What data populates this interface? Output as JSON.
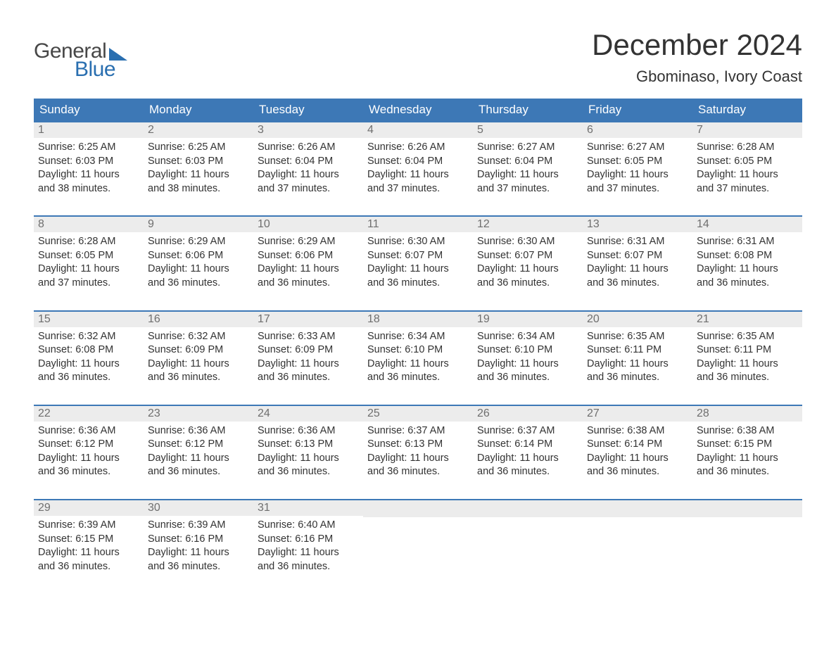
{
  "brand": {
    "word1": "General",
    "word2": "Blue"
  },
  "title": "December 2024",
  "location": "Gbominaso, Ivory Coast",
  "colors": {
    "header_bg": "#3d78b6",
    "header_text": "#ffffff",
    "daynum_bg": "#ececec",
    "daynum_text": "#6f6f6f",
    "body_text": "#333333",
    "brand_gray": "#474747",
    "brand_blue": "#2a6fb0",
    "row_border": "#3d78b6",
    "page_bg": "#ffffff"
  },
  "typography": {
    "title_fontsize": 42,
    "location_fontsize": 22,
    "weekday_fontsize": 17,
    "daynum_fontsize": 16,
    "body_fontsize": 14.5,
    "logo_fontsize": 30
  },
  "weekdays": [
    "Sunday",
    "Monday",
    "Tuesday",
    "Wednesday",
    "Thursday",
    "Friday",
    "Saturday"
  ],
  "weeks": [
    [
      {
        "n": "1",
        "sr": "6:25 AM",
        "ss": "6:03 PM",
        "dh": "11",
        "dm": "38"
      },
      {
        "n": "2",
        "sr": "6:25 AM",
        "ss": "6:03 PM",
        "dh": "11",
        "dm": "38"
      },
      {
        "n": "3",
        "sr": "6:26 AM",
        "ss": "6:04 PM",
        "dh": "11",
        "dm": "37"
      },
      {
        "n": "4",
        "sr": "6:26 AM",
        "ss": "6:04 PM",
        "dh": "11",
        "dm": "37"
      },
      {
        "n": "5",
        "sr": "6:27 AM",
        "ss": "6:04 PM",
        "dh": "11",
        "dm": "37"
      },
      {
        "n": "6",
        "sr": "6:27 AM",
        "ss": "6:05 PM",
        "dh": "11",
        "dm": "37"
      },
      {
        "n": "7",
        "sr": "6:28 AM",
        "ss": "6:05 PM",
        "dh": "11",
        "dm": "37"
      }
    ],
    [
      {
        "n": "8",
        "sr": "6:28 AM",
        "ss": "6:05 PM",
        "dh": "11",
        "dm": "37"
      },
      {
        "n": "9",
        "sr": "6:29 AM",
        "ss": "6:06 PM",
        "dh": "11",
        "dm": "36"
      },
      {
        "n": "10",
        "sr": "6:29 AM",
        "ss": "6:06 PM",
        "dh": "11",
        "dm": "36"
      },
      {
        "n": "11",
        "sr": "6:30 AM",
        "ss": "6:07 PM",
        "dh": "11",
        "dm": "36"
      },
      {
        "n": "12",
        "sr": "6:30 AM",
        "ss": "6:07 PM",
        "dh": "11",
        "dm": "36"
      },
      {
        "n": "13",
        "sr": "6:31 AM",
        "ss": "6:07 PM",
        "dh": "11",
        "dm": "36"
      },
      {
        "n": "14",
        "sr": "6:31 AM",
        "ss": "6:08 PM",
        "dh": "11",
        "dm": "36"
      }
    ],
    [
      {
        "n": "15",
        "sr": "6:32 AM",
        "ss": "6:08 PM",
        "dh": "11",
        "dm": "36"
      },
      {
        "n": "16",
        "sr": "6:32 AM",
        "ss": "6:09 PM",
        "dh": "11",
        "dm": "36"
      },
      {
        "n": "17",
        "sr": "6:33 AM",
        "ss": "6:09 PM",
        "dh": "11",
        "dm": "36"
      },
      {
        "n": "18",
        "sr": "6:34 AM",
        "ss": "6:10 PM",
        "dh": "11",
        "dm": "36"
      },
      {
        "n": "19",
        "sr": "6:34 AM",
        "ss": "6:10 PM",
        "dh": "11",
        "dm": "36"
      },
      {
        "n": "20",
        "sr": "6:35 AM",
        "ss": "6:11 PM",
        "dh": "11",
        "dm": "36"
      },
      {
        "n": "21",
        "sr": "6:35 AM",
        "ss": "6:11 PM",
        "dh": "11",
        "dm": "36"
      }
    ],
    [
      {
        "n": "22",
        "sr": "6:36 AM",
        "ss": "6:12 PM",
        "dh": "11",
        "dm": "36"
      },
      {
        "n": "23",
        "sr": "6:36 AM",
        "ss": "6:12 PM",
        "dh": "11",
        "dm": "36"
      },
      {
        "n": "24",
        "sr": "6:36 AM",
        "ss": "6:13 PM",
        "dh": "11",
        "dm": "36"
      },
      {
        "n": "25",
        "sr": "6:37 AM",
        "ss": "6:13 PM",
        "dh": "11",
        "dm": "36"
      },
      {
        "n": "26",
        "sr": "6:37 AM",
        "ss": "6:14 PM",
        "dh": "11",
        "dm": "36"
      },
      {
        "n": "27",
        "sr": "6:38 AM",
        "ss": "6:14 PM",
        "dh": "11",
        "dm": "36"
      },
      {
        "n": "28",
        "sr": "6:38 AM",
        "ss": "6:15 PM",
        "dh": "11",
        "dm": "36"
      }
    ],
    [
      {
        "n": "29",
        "sr": "6:39 AM",
        "ss": "6:15 PM",
        "dh": "11",
        "dm": "36"
      },
      {
        "n": "30",
        "sr": "6:39 AM",
        "ss": "6:16 PM",
        "dh": "11",
        "dm": "36"
      },
      {
        "n": "31",
        "sr": "6:40 AM",
        "ss": "6:16 PM",
        "dh": "11",
        "dm": "36"
      },
      null,
      null,
      null,
      null
    ]
  ],
  "labels": {
    "sunrise": "Sunrise:",
    "sunset": "Sunset:",
    "daylight_prefix": "Daylight:",
    "hours_word": "hours",
    "and_word": "and",
    "minutes_word": "minutes."
  }
}
